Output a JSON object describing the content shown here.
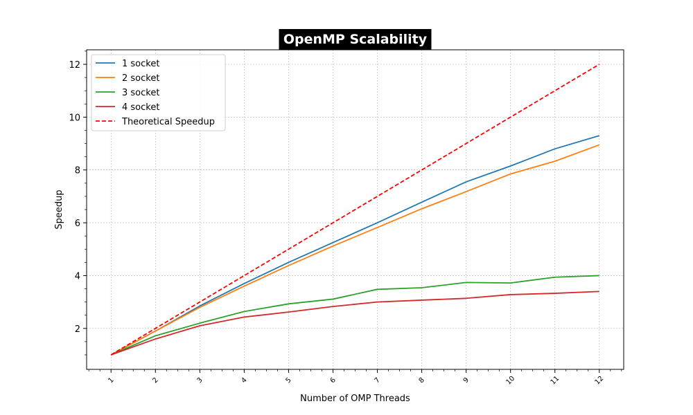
{
  "chart_data": {
    "type": "line",
    "title": "OpenMP Scalability",
    "xlabel": "Number of OMP Threads",
    "ylabel": "Speedup",
    "x": [
      1,
      2,
      3,
      4,
      5,
      6,
      7,
      8,
      9,
      10,
      11,
      12
    ],
    "xlim": [
      0.45,
      12.55
    ],
    "ylim": [
      0.45,
      12.55
    ],
    "yticks": [
      2,
      4,
      6,
      8,
      10,
      12
    ],
    "grid": true,
    "legend_position": "top-left",
    "series": [
      {
        "name": "1 socket",
        "color": "#1f77b4",
        "style": "solid",
        "values": [
          1.0,
          1.9,
          2.85,
          3.7,
          4.5,
          5.25,
          6.0,
          6.78,
          7.55,
          8.15,
          8.8,
          9.3
        ]
      },
      {
        "name": "2 socket",
        "color": "#ff7f0e",
        "style": "solid",
        "values": [
          1.0,
          1.9,
          2.8,
          3.6,
          4.38,
          5.12,
          5.82,
          6.53,
          7.18,
          7.85,
          8.33,
          8.95
        ]
      },
      {
        "name": "3 socket",
        "color": "#2ca02c",
        "style": "solid",
        "values": [
          1.0,
          1.72,
          2.2,
          2.64,
          2.93,
          3.11,
          3.48,
          3.54,
          3.74,
          3.72,
          3.94,
          4.0
        ]
      },
      {
        "name": "4 socket",
        "color": "#d62728",
        "style": "solid",
        "values": [
          1.0,
          1.6,
          2.1,
          2.43,
          2.62,
          2.83,
          3.0,
          3.07,
          3.14,
          3.28,
          3.33,
          3.4
        ]
      },
      {
        "name": "Theoretical Speedup",
        "color": "#ff0000",
        "style": "dashed",
        "values": [
          1,
          2,
          3,
          4,
          5,
          6,
          7,
          8,
          9,
          10,
          11,
          12
        ]
      }
    ]
  }
}
